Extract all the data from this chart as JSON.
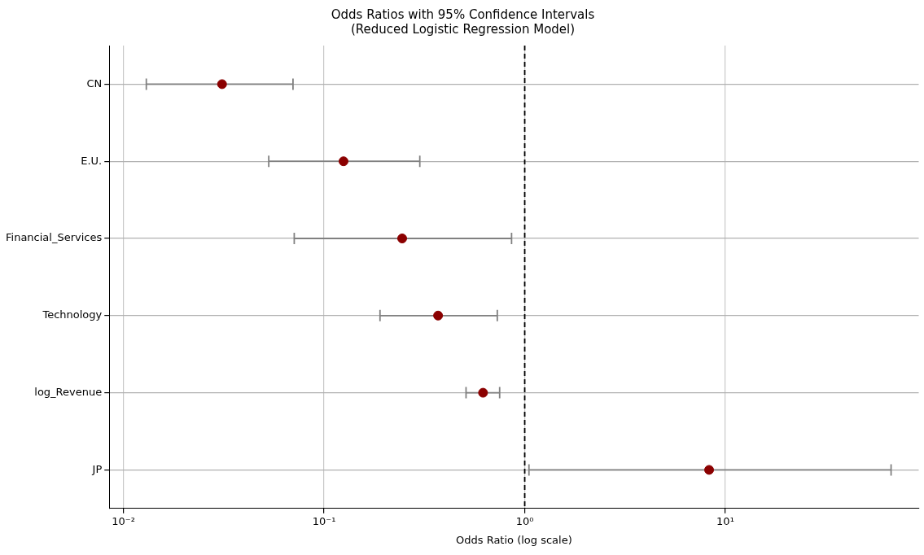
{
  "chart_data": {
    "type": "scatter",
    "orientation": "horizontal",
    "title": "Odds Ratios with 95% Confidence Intervals",
    "subtitle": "(Reduced Logistic Regression Model)",
    "xlabel": "Odds Ratio (log scale)",
    "categories": [
      "CN",
      "E.U.",
      "Financial_Services",
      "Technology",
      "log_Revenue",
      "JP"
    ],
    "values": [
      0.031,
      0.125,
      0.245,
      0.37,
      0.62,
      8.3
    ],
    "errors": [
      [
        0.013,
        0.07
      ],
      [
        0.053,
        0.3
      ],
      [
        0.071,
        0.86
      ],
      [
        0.19,
        0.73
      ],
      [
        0.51,
        0.75
      ],
      [
        1.05,
        67
      ]
    ],
    "color": "#8b0000",
    "marker": "circle",
    "log": "x",
    "grid": true,
    "legend": false,
    "xlim": [
      0.0085,
      92
    ],
    "xticks": [
      {
        "value": 0.01,
        "label": "10⁻²"
      },
      {
        "value": 0.1,
        "label": "10⁻¹"
      },
      {
        "value": 1,
        "label": "10⁰"
      },
      {
        "value": 10,
        "label": "10¹"
      }
    ],
    "ref_lines": [
      {
        "axis": "x",
        "value": 1,
        "color": "#000000",
        "line_style": "dashed"
      }
    ]
  }
}
